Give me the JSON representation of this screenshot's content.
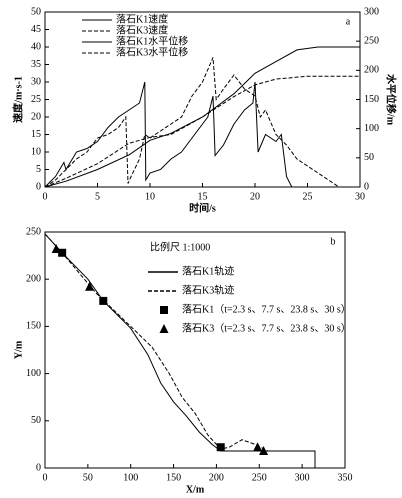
{
  "chart_data": [
    {
      "type": "line",
      "label": "a",
      "xlabel": "时间/s",
      "ylabel": "速度/m·s-1",
      "y2label": "水平位移/m",
      "xlim": [
        0,
        30
      ],
      "xticks": [
        0,
        5,
        10,
        15,
        20,
        25,
        30
      ],
      "ylim": [
        0,
        50
      ],
      "yticks": [
        0,
        5,
        10,
        15,
        20,
        25,
        30,
        35,
        40,
        45,
        50
      ],
      "y2lim": [
        0,
        300
      ],
      "y2ticks": [
        0,
        50,
        100,
        150,
        200,
        250,
        300
      ],
      "legend": "upper left",
      "series": [
        {
          "name": "落石K1速度",
          "color": "#000000",
          "linestyle": "solid",
          "x": [
            0,
            1,
            1.8,
            2,
            3,
            4,
            5,
            6,
            7,
            8,
            9,
            9.5,
            9.6,
            10,
            11,
            12,
            13,
            14,
            15,
            15.5,
            16,
            16.2,
            17,
            18,
            19,
            19.8,
            20,
            20.3,
            21,
            22,
            22.5,
            23,
            23.5,
            24
          ],
          "values": [
            0,
            3,
            7,
            5,
            10,
            11,
            13,
            17,
            20,
            22,
            24,
            30,
            2,
            4,
            5,
            8,
            10,
            14,
            18,
            20,
            26,
            9,
            12,
            18,
            22,
            24,
            30,
            10,
            15,
            13,
            15,
            3,
            0,
            0
          ]
        },
        {
          "name": "落石K3速度",
          "color": "#000000",
          "linestyle": "dashed",
          "x": [
            0,
            1,
            2,
            3,
            4,
            5,
            6,
            7,
            7.7,
            7.9,
            8.2,
            9,
            9.5,
            10,
            11,
            12,
            13,
            14,
            15,
            16,
            16.3,
            17,
            18,
            19,
            20,
            20.5,
            21,
            22,
            23,
            24,
            25,
            26,
            27,
            28
          ],
          "values": [
            0,
            2,
            5,
            8,
            10,
            14,
            15,
            17,
            20,
            1,
            3,
            8,
            15,
            14,
            16,
            18,
            20,
            26,
            30,
            37,
            25,
            28,
            32,
            28,
            26,
            20,
            22,
            15,
            12,
            8,
            6,
            4,
            2,
            0
          ]
        },
        {
          "name": "落石K1水平位移",
          "color": "#000000",
          "linestyle": "solid",
          "axis": "y2",
          "x": [
            0,
            2,
            5,
            8,
            10,
            12,
            15,
            18,
            20,
            22,
            24,
            26,
            28,
            30
          ],
          "values": [
            0,
            10,
            30,
            55,
            80,
            92,
            120,
            160,
            195,
            215,
            235,
            240,
            240,
            240
          ]
        },
        {
          "name": "落石K3水平位移",
          "color": "#000000",
          "linestyle": "dashed",
          "axis": "y2",
          "x": [
            0,
            2,
            5,
            8,
            10,
            12,
            15,
            18,
            20,
            22,
            25,
            30
          ],
          "values": [
            0,
            15,
            40,
            75,
            85,
            90,
            120,
            155,
            175,
            185,
            190,
            190
          ]
        }
      ]
    },
    {
      "type": "line",
      "label": "b",
      "scale_note": "比例尺 1:1000",
      "xlabel": "X/m",
      "ylabel": "Y/m",
      "xlim": [
        0,
        350
      ],
      "xticks": [
        0,
        50,
        100,
        150,
        200,
        250,
        300,
        350
      ],
      "ylim": [
        0,
        250
      ],
      "yticks": [
        0,
        50,
        100,
        150,
        200,
        250
      ],
      "legend": "center right",
      "series": [
        {
          "name": "落石K1轨迹",
          "color": "#000000",
          "linestyle": "solid",
          "x": [
            0,
            20,
            50,
            68,
            100,
            120,
            135,
            150,
            165,
            180,
            195,
            205,
            230,
            315,
            315
          ],
          "values": [
            248,
            228,
            200,
            177,
            148,
            120,
            90,
            70,
            55,
            38,
            25,
            18,
            18,
            18,
            0
          ]
        },
        {
          "name": "落石K3轨迹",
          "color": "#000000",
          "linestyle": "dashed",
          "x": [
            0,
            20,
            60,
            100,
            125,
            145,
            160,
            175,
            190,
            205,
            215,
            230,
            245,
            260
          ],
          "values": [
            248,
            228,
            185,
            150,
            128,
            100,
            75,
            58,
            35,
            20,
            22,
            30,
            25,
            18
          ]
        },
        {
          "name": "落石K1（t=2.3 s、7.7 s、23.8 s、30 s）",
          "color": "#000000",
          "marker": "square",
          "x": [
            20,
            68,
            205
          ],
          "values": [
            228,
            177,
            22
          ]
        },
        {
          "name": "落石K3（t=2.3 s、7.7 s、23.8 s、30 s）",
          "color": "#000000",
          "marker": "triangle",
          "x": [
            13,
            52,
            248,
            255
          ],
          "values": [
            232,
            192,
            22,
            18
          ]
        }
      ]
    }
  ]
}
